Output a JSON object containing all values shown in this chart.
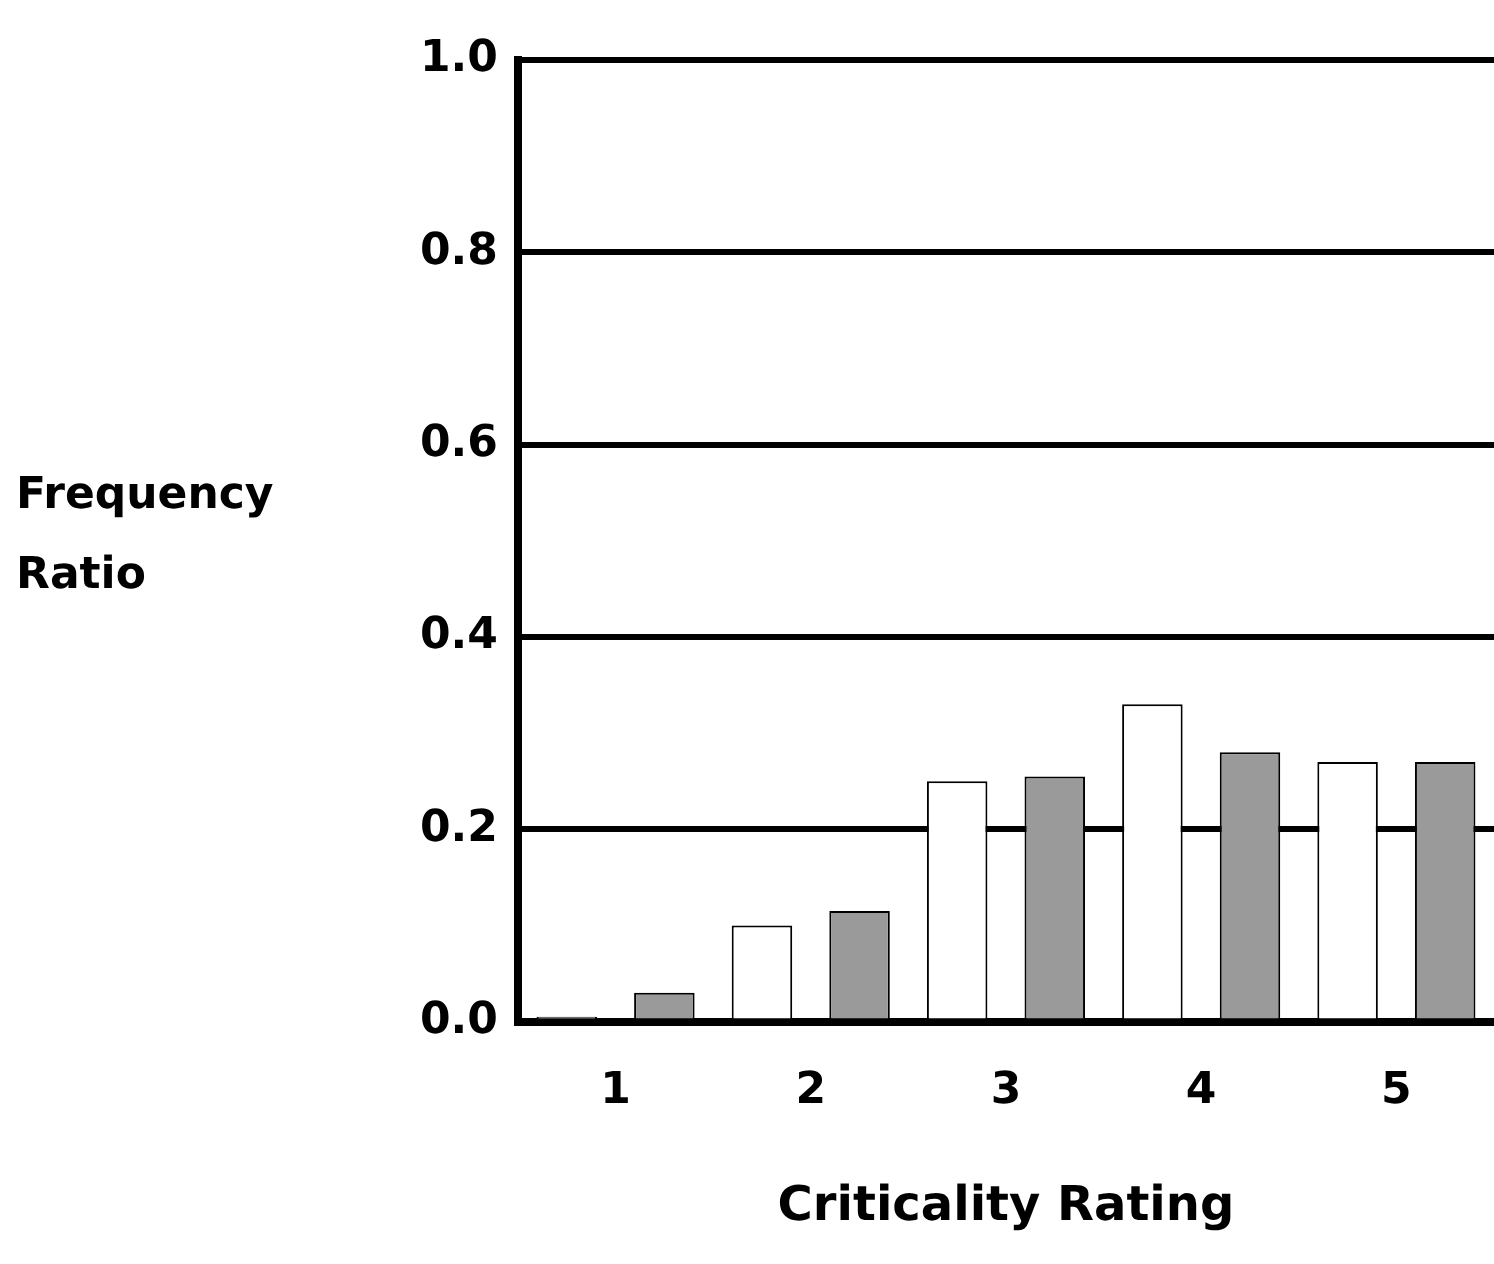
{
  "chart_data": {
    "type": "bar",
    "xlabel": "Criticality Rating",
    "ylabel": "Frequency Ratio",
    "categories": [
      "1",
      "2",
      "3",
      "4",
      "5"
    ],
    "series": [
      {
        "color": "#ffffff",
        "values": [
          0.005,
          0.1,
          0.25,
          0.33,
          0.27
        ]
      },
      {
        "color": "#9a9a9a",
        "values": [
          0.03,
          0.115,
          0.255,
          0.28,
          0.27
        ]
      }
    ],
    "ylim": [
      0,
      1
    ],
    "yticks": [
      {
        "value": 0,
        "label": "0.0"
      },
      {
        "value": 0.2,
        "label": "0.2"
      },
      {
        "value": 0.4,
        "label": "0.4"
      },
      {
        "value": 0.6,
        "label": "0.6"
      },
      {
        "value": 0.8,
        "label": "0.8"
      },
      {
        "value": 1,
        "label": "1.0"
      }
    ],
    "grid": "y",
    "legend": false
  }
}
